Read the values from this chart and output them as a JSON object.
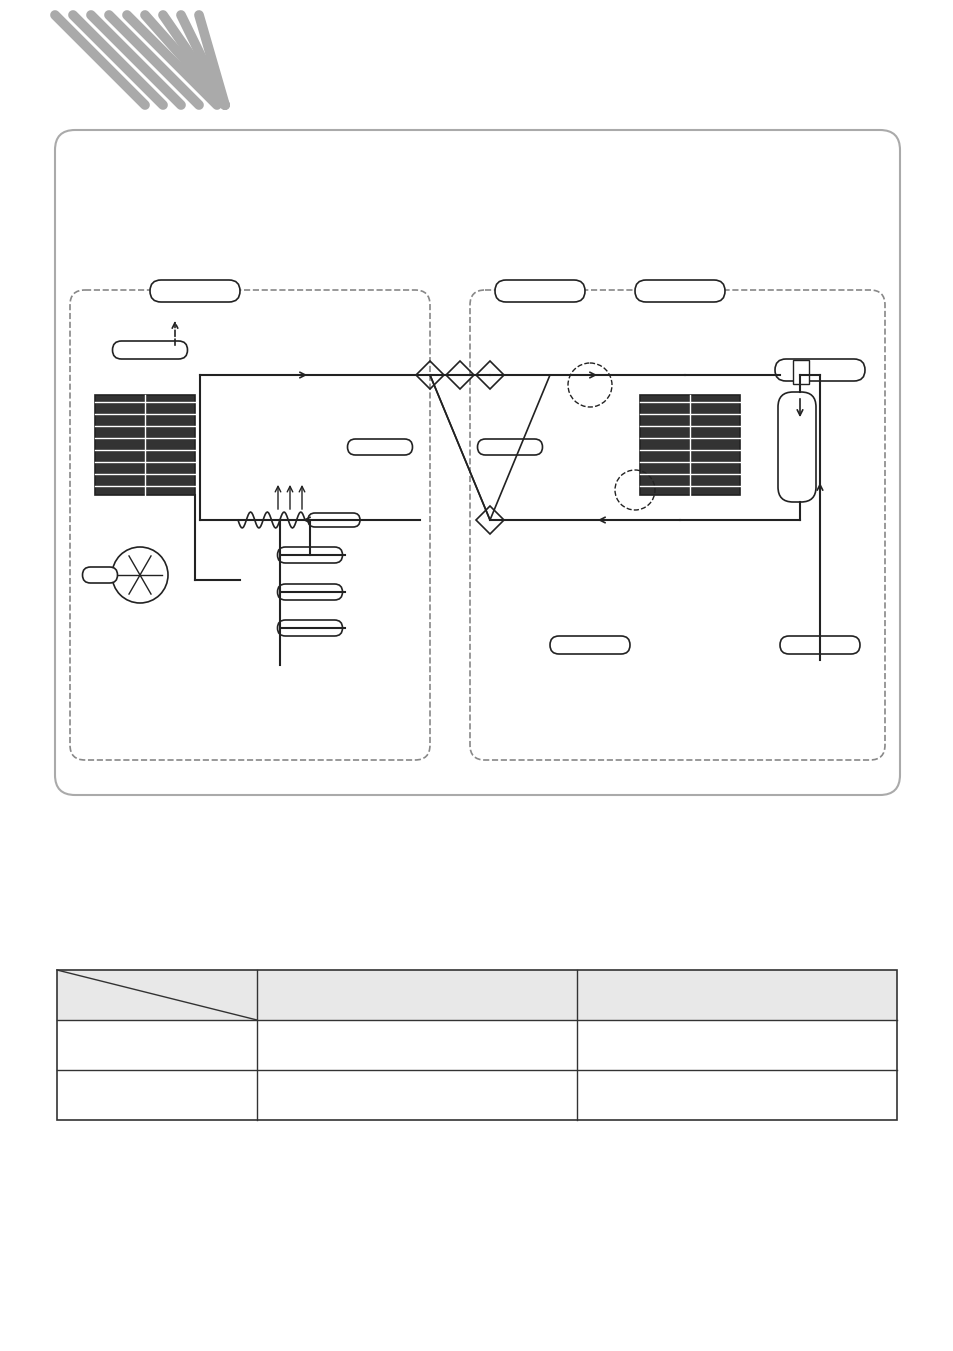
{
  "page_bg": "#ffffff",
  "outer_box_color": "#aaaaaa",
  "inner_dashed_color": "#888888",
  "diagram_line_color": "#222222",
  "logo_color": "#aaaaaa",
  "table_header_bg": "#e8e8e8",
  "table_border_color": "#333333"
}
